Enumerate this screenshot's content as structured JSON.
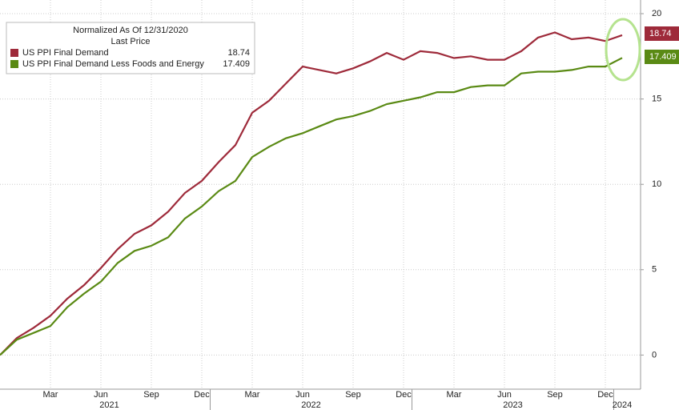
{
  "chart_data": {
    "type": "line",
    "legend_title": "Normalized As Of 12/31/2020",
    "legend_subtitle": "Last Price",
    "categories": [
      null,
      null,
      null,
      "Mar",
      null,
      null,
      "Jun",
      null,
      null,
      "Sep",
      null,
      null,
      "Dec",
      null,
      null,
      "Mar",
      null,
      null,
      "Jun",
      null,
      null,
      "Sep",
      null,
      null,
      "Dec",
      null,
      null,
      "Mar",
      null,
      null,
      "Jun",
      null,
      null,
      "Sep",
      null,
      null,
      "Dec",
      null
    ],
    "x_groups": [
      "2021",
      "2022",
      "2023",
      "2024"
    ],
    "series": [
      {
        "name": "US PPI Final Demand",
        "color": "#9e2a3a",
        "values": [
          0,
          1.0,
          1.6,
          2.3,
          3.3,
          4.1,
          5.1,
          6.2,
          7.1,
          7.6,
          8.4,
          9.5,
          10.2,
          11.3,
          12.3,
          14.2,
          14.9,
          15.9,
          16.9,
          16.7,
          16.5,
          16.8,
          17.2,
          17.7,
          17.3,
          17.8,
          17.7,
          17.4,
          17.5,
          17.3,
          17.3,
          17.8,
          18.6,
          18.9,
          18.5,
          18.6,
          18.4,
          18.74
        ]
      },
      {
        "name": "US PPI Final Demand Less Foods and Energy",
        "color": "#5a8a14",
        "values": [
          0,
          0.9,
          1.3,
          1.7,
          2.8,
          3.6,
          4.3,
          5.4,
          6.1,
          6.4,
          6.9,
          8.0,
          8.7,
          9.6,
          10.2,
          11.6,
          12.2,
          12.7,
          13.0,
          13.4,
          13.8,
          14.0,
          14.3,
          14.7,
          14.9,
          15.1,
          15.4,
          15.4,
          15.7,
          15.8,
          15.8,
          16.5,
          16.6,
          16.6,
          16.7,
          16.9,
          16.9,
          17.409
        ]
      }
    ],
    "ylim": [
      -2,
      20.8
    ],
    "yticks": [
      0,
      5,
      10,
      15,
      20
    ],
    "grid": true,
    "legend": "upper left"
  }
}
